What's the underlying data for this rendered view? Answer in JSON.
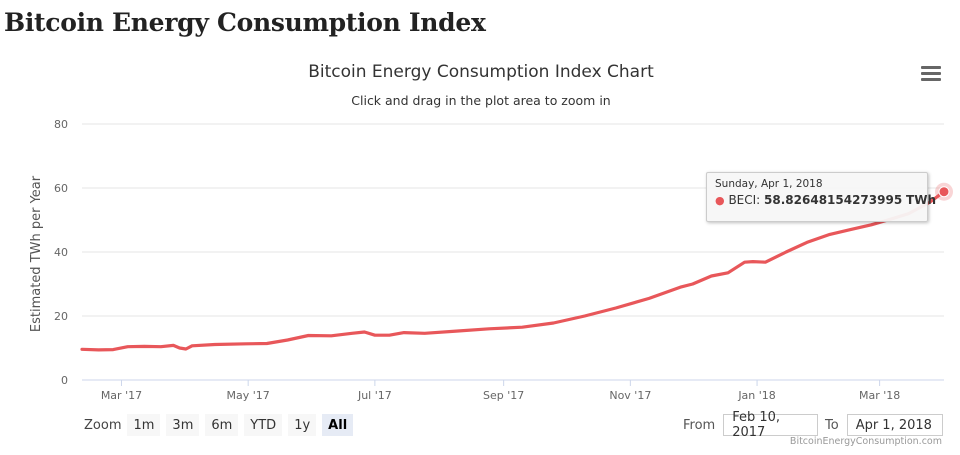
{
  "page": {
    "heading": "Bitcoin Energy Consumption Index",
    "menu_icon": "hamburger-menu-icon",
    "credit": "BitcoinEnergyConsumption.com"
  },
  "colors": {
    "line": "#e8575a",
    "grid": "#e6e6e6",
    "axis_text": "#666666"
  },
  "navigator": {
    "zoom_label": "Zoom",
    "zoom_buttons": [
      {
        "label": "1m",
        "active": false
      },
      {
        "label": "3m",
        "active": false
      },
      {
        "label": "6m",
        "active": false
      },
      {
        "label": "YTD",
        "active": false
      },
      {
        "label": "1y",
        "active": false
      },
      {
        "label": "All",
        "active": true
      }
    ],
    "from_label": "From",
    "from_value": "Feb 10, 2017",
    "to_label": "To",
    "to_value": "Apr 1, 2018"
  },
  "tooltip": {
    "date": "Sunday, Apr 1, 2018",
    "series": "BECI",
    "value": "58.82648154273995",
    "unit": "TWh"
  },
  "chart_data": {
    "type": "line",
    "title": "Bitcoin Energy Consumption Index Chart",
    "subtitle": "Click and drag in the plot area to zoom in",
    "xlabel": "",
    "ylabel": "Estimated TWh per Year",
    "ylim": [
      0,
      80
    ],
    "yticks": [
      0,
      20,
      40,
      60,
      80
    ],
    "xticks": [
      "Mar '17",
      "May '17",
      "Jul '17",
      "Sep '17",
      "Nov '17",
      "Jan '18",
      "Mar '18"
    ],
    "xtick_dates": [
      "2017-03-01",
      "2017-05-01",
      "2017-07-01",
      "2017-09-01",
      "2017-11-01",
      "2018-01-01",
      "2018-03-01"
    ],
    "xrange": [
      "2017-02-10",
      "2018-04-01"
    ],
    "grid": true,
    "legend": "none",
    "series": [
      {
        "name": "BECI",
        "x": [
          "2017-02-10",
          "2017-02-18",
          "2017-02-25",
          "2017-03-04",
          "2017-03-12",
          "2017-03-20",
          "2017-03-26",
          "2017-03-29",
          "2017-04-01",
          "2017-04-04",
          "2017-04-15",
          "2017-04-30",
          "2017-05-10",
          "2017-05-20",
          "2017-05-30",
          "2017-06-10",
          "2017-06-20",
          "2017-06-26",
          "2017-07-01",
          "2017-07-08",
          "2017-07-15",
          "2017-07-25",
          "2017-08-10",
          "2017-08-25",
          "2017-09-10",
          "2017-09-25",
          "2017-10-10",
          "2017-10-25",
          "2017-11-10",
          "2017-11-25",
          "2017-12-01",
          "2017-12-10",
          "2017-12-18",
          "2017-12-26",
          "2017-12-30",
          "2018-01-05",
          "2018-01-15",
          "2018-01-25",
          "2018-02-05",
          "2018-02-15",
          "2018-02-25",
          "2018-03-05",
          "2018-03-15",
          "2018-03-25",
          "2018-04-01"
        ],
        "y": [
          9.6,
          9.4,
          9.5,
          10.4,
          10.5,
          10.4,
          10.8,
          10.0,
          9.7,
          10.7,
          11.1,
          11.3,
          11.4,
          12.5,
          13.9,
          13.8,
          14.6,
          15.0,
          14.0,
          14.0,
          14.8,
          14.6,
          15.3,
          16.0,
          16.5,
          17.8,
          20.0,
          22.5,
          25.5,
          29.0,
          30.0,
          32.5,
          33.5,
          36.8,
          37.0,
          36.8,
          40.0,
          43.0,
          45.5,
          47.0,
          48.5,
          50.0,
          52.0,
          55.5,
          58.83
        ]
      }
    ]
  }
}
